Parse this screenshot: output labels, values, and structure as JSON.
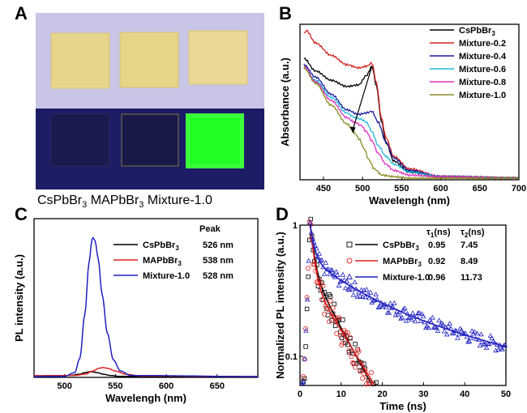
{
  "panel_letters": {
    "a": "A",
    "b": "B",
    "c": "C",
    "d": "D"
  },
  "colors": {
    "cs": "#000000",
    "ma": "#e02020",
    "mix": "#2020c0",
    "m02": "#d42020",
    "m04": "#1a1a9a",
    "m06": "#22b8d8",
    "m08": "#e030c0",
    "m10": "#8a8a20",
    "photo_bg_top": "#c8c4e4",
    "photo_bg_bottom": "#1e1e6a",
    "film": "#e8d68a",
    "green_glow": "#22ff22"
  },
  "photo": {
    "caption": "CsPbBr3 MAPbBr3 Mixture-1.0",
    "caption_parts": [
      {
        "base": "CsPbBr",
        "sub": "3",
        "after": " "
      },
      {
        "base": "MAPbBr",
        "sub": "3",
        "after": " "
      },
      {
        "base": "Mixture-1.0",
        "sub": "",
        "after": ""
      }
    ]
  },
  "chart_data": [
    {
      "panel": "B",
      "type": "line",
      "xlabel": "Wavelengh (nm)",
      "ylabel": "Absorbance (a.u.)",
      "xlim": [
        420,
        700
      ],
      "ylim": [
        0,
        1
      ],
      "xticks": [
        450,
        500,
        550,
        600,
        650,
        700
      ],
      "legend_position": "top-right",
      "series": [
        {
          "name": "CsPbBr3",
          "label_base": "CsPbBr",
          "label_sub": "3",
          "color_key": "cs",
          "x": [
            425,
            440,
            460,
            480,
            495,
            505,
            512,
            518,
            524,
            530,
            540,
            560,
            600,
            700
          ],
          "y": [
            0.78,
            0.7,
            0.64,
            0.6,
            0.61,
            0.67,
            0.73,
            0.6,
            0.38,
            0.24,
            0.12,
            0.05,
            0.02,
            0.01
          ]
        },
        {
          "name": "Mixture-0.2",
          "label_base": "Mixture-0.2",
          "label_sub": "",
          "color_key": "m02",
          "x": [
            425,
            428,
            440,
            460,
            480,
            495,
            505,
            512,
            518,
            524,
            530,
            540,
            560,
            600,
            700
          ],
          "y": [
            0.94,
            0.96,
            0.88,
            0.8,
            0.74,
            0.72,
            0.73,
            0.75,
            0.62,
            0.4,
            0.27,
            0.15,
            0.07,
            0.02,
            0.01
          ]
        },
        {
          "name": "Mixture-0.4",
          "label_base": "Mixture-0.4",
          "label_sub": "",
          "color_key": "m04",
          "x": [
            425,
            440,
            460,
            480,
            495,
            505,
            512,
            520,
            530,
            540,
            560,
            600,
            700
          ],
          "y": [
            0.74,
            0.66,
            0.55,
            0.45,
            0.42,
            0.43,
            0.44,
            0.37,
            0.24,
            0.14,
            0.06,
            0.02,
            0.01
          ]
        },
        {
          "name": "Mixture-0.6",
          "label_base": "Mixture-0.6",
          "label_sub": "",
          "color_key": "m06",
          "x": [
            425,
            440,
            460,
            480,
            490,
            498,
            505,
            512,
            520,
            530,
            540,
            560,
            600,
            700
          ],
          "y": [
            0.72,
            0.64,
            0.53,
            0.43,
            0.4,
            0.39,
            0.37,
            0.31,
            0.22,
            0.15,
            0.1,
            0.05,
            0.02,
            0.01
          ]
        },
        {
          "name": "Mixture-0.8",
          "label_base": "Mixture-0.8",
          "label_sub": "",
          "color_key": "m08",
          "x": [
            425,
            440,
            460,
            480,
            490,
            498,
            505,
            512,
            520,
            530,
            540,
            560,
            600,
            700
          ],
          "y": [
            0.73,
            0.63,
            0.51,
            0.4,
            0.37,
            0.35,
            0.31,
            0.25,
            0.17,
            0.1,
            0.06,
            0.03,
            0.02,
            0.01
          ]
        },
        {
          "name": "Mixture-1.0",
          "label_base": "Mixture-1.0",
          "label_sub": "",
          "color_key": "m10",
          "x": [
            425,
            440,
            460,
            480,
            490,
            496,
            502,
            508,
            515,
            525,
            540,
            560,
            600,
            700
          ],
          "y": [
            0.72,
            0.62,
            0.48,
            0.36,
            0.3,
            0.26,
            0.2,
            0.13,
            0.07,
            0.03,
            0.02,
            0.01,
            0.01,
            0.01
          ]
        }
      ]
    },
    {
      "panel": "C",
      "type": "line",
      "xlabel": "Wavelengh (nm)",
      "ylabel": "PL intensity (a.u.)",
      "xlim": [
        470,
        690
      ],
      "ylim": [
        0,
        1.0
      ],
      "xticks": [
        500,
        550,
        600,
        650
      ],
      "legend_position": "top-right",
      "legend_header": "Peak",
      "series": [
        {
          "name": "CsPbBr3",
          "label_base": "CsPbBr",
          "label_sub": "3",
          "peak": "526 nm",
          "color_key": "cs",
          "x": [
            470,
            505,
            515,
            520,
            526,
            532,
            538,
            545,
            555,
            690
          ],
          "y": [
            0.01,
            0.012,
            0.02,
            0.03,
            0.036,
            0.03,
            0.02,
            0.012,
            0.006,
            0.005
          ]
        },
        {
          "name": "MAPbBr3",
          "label_base": "MAPbBr",
          "label_sub": "3",
          "peak": "538 nm",
          "color_key": "ma",
          "x": [
            470,
            510,
            520,
            528,
            534,
            538,
            543,
            550,
            560,
            575,
            690
          ],
          "y": [
            0.01,
            0.012,
            0.02,
            0.04,
            0.058,
            0.062,
            0.056,
            0.04,
            0.02,
            0.009,
            0.005
          ]
        },
        {
          "name": "Mixture-1.0",
          "label_base": "Mixture-1.0",
          "label_sub": "",
          "peak": "528 nm",
          "color_key": "mix",
          "x": [
            470,
            500,
            510,
            515,
            520,
            524,
            527,
            528,
            530,
            533,
            537,
            542,
            548,
            555,
            565,
            690
          ],
          "y": [
            0.005,
            0.007,
            0.03,
            0.12,
            0.4,
            0.72,
            0.87,
            0.88,
            0.86,
            0.75,
            0.52,
            0.28,
            0.11,
            0.04,
            0.012,
            0.005
          ]
        }
      ]
    },
    {
      "panel": "D",
      "type": "scatter",
      "xlabel": "Time (ns)",
      "ylabel": "Normalized PL intensity (a.u.)",
      "xlim": [
        0,
        50
      ],
      "ylim": [
        0.06,
        1.0
      ],
      "yscale": "log",
      "xticks": [
        0,
        10,
        20,
        30,
        40,
        50
      ],
      "yticks": [
        1,
        0.1
      ],
      "ytick_labels": [
        "1",
        "0.1"
      ],
      "legend_position": "top-right",
      "tau1_header": "τ1(ns)",
      "tau2_header": "τ2(ns)",
      "series": [
        {
          "name": "CsPbBr3",
          "label_base": "CsPbBr",
          "label_sub": "3",
          "tau1": "0.95",
          "tau2": "7.45",
          "marker": "square",
          "color_key": "cs",
          "A1": 0.55,
          "t1": 0.95,
          "A2": 0.45,
          "t2": 7.45,
          "t_end": 22
        },
        {
          "name": "MAPbBr3",
          "label_base": "MAPbBr",
          "label_sub": "3",
          "tau1": "0.92",
          "tau2": "8.49",
          "marker": "circle",
          "color_key": "ma",
          "A1": 0.62,
          "t1": 0.92,
          "A2": 0.38,
          "t2": 8.49,
          "t_end": 28
        },
        {
          "name": "Mixture-1.0",
          "label_base": "Mixture-1.0",
          "label_sub": "",
          "tau1": "0.96",
          "tau2": "11.73",
          "marker": "triangle",
          "color_key": "mix",
          "A1": 0.45,
          "t1": 0.96,
          "A2": 0.3,
          "t2": 11.73,
          "C": 0.25,
          "t3": 60,
          "t_end": 50
        }
      ]
    }
  ]
}
